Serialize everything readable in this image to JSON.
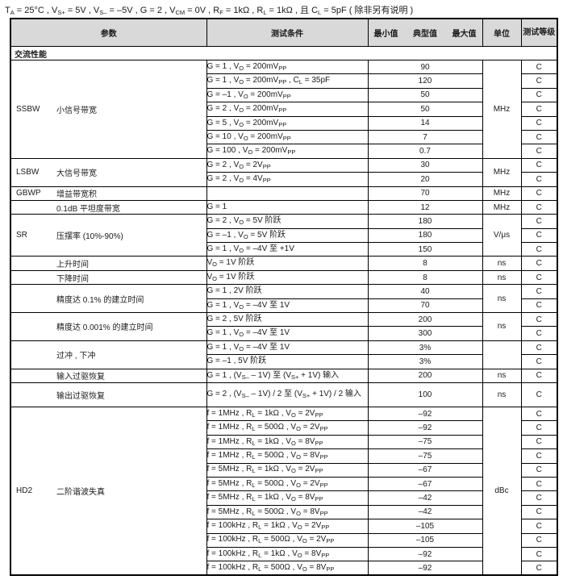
{
  "page": {
    "conditions_line": "T~A~ = 25°C , V~S+~ = 5V , V~S–~ = –5V , G = 2 , V~CM~ = 0V , R~F~ = 1kΩ , R~L~ = 1kΩ , 且 C~L~ = 5pF ( 除非另有说明 )"
  },
  "colors": {
    "header_bg": "#d9d9d9",
    "border": "#000000",
    "text": "#1a1a1a"
  },
  "table": {
    "headers": {
      "param": "参数",
      "conditions": "测试条件",
      "min": "最小值",
      "typ": "典型值",
      "max": "最大值",
      "unit": "单位",
      "level": "测试等级"
    },
    "section": "交流性能",
    "groups": [
      {
        "symbol": "SSBW",
        "name": "小信号带宽",
        "unit": "MHz",
        "rows": [
          {
            "cond": "G = 1 , V~O~ = 200mV~PP~",
            "typ": "90",
            "level": "C"
          },
          {
            "cond": "G = 1 , V~O~ = 200mV~PP~ , C~L~ = 35pF",
            "typ": "120",
            "level": "C"
          },
          {
            "cond": "G = –1 , V~O~ = 200mV~PP~",
            "typ": "50",
            "level": "C"
          },
          {
            "cond": "G = 2 , V~O~ = 200mV~PP~",
            "typ": "50",
            "level": "C"
          },
          {
            "cond": "G = 5 , V~O~ = 200mV~PP~",
            "typ": "14",
            "level": "C"
          },
          {
            "cond": "G = 10 , V~O~ = 200mV~PP~",
            "typ": "7",
            "level": "C"
          },
          {
            "cond": "G = 100 , V~O~ = 200mV~PP~",
            "typ": "0.7",
            "level": "C"
          }
        ]
      },
      {
        "symbol": "LSBW",
        "name": "大信号带宽",
        "unit": "MHz",
        "rows": [
          {
            "cond": "G = 2 , V~O~ = 2V~PP~",
            "typ": "30",
            "level": "C"
          },
          {
            "cond": "G = 2 , V~O~ = 4V~PP~",
            "typ": "20",
            "level": "C"
          }
        ]
      },
      {
        "symbol": "GBWP",
        "name": "增益带宽积",
        "unit": "MHz",
        "rows": [
          {
            "cond": "",
            "typ": "70",
            "level": "C"
          }
        ]
      },
      {
        "symbol": "",
        "name": "0.1dB 平坦度带宽",
        "unit": "MHz",
        "rows": [
          {
            "cond": "G = 1",
            "typ": "12",
            "level": "C"
          }
        ]
      },
      {
        "symbol": "SR",
        "name": "压摆率 (10%-90%)",
        "unit": "V/μs",
        "rows": [
          {
            "cond": "G = 2 , V~O~ = 5V 阶跃",
            "typ": "180",
            "level": "C"
          },
          {
            "cond": "G = –1 , V~O~ = 5V 阶跃",
            "typ": "180",
            "level": "C"
          },
          {
            "cond": "G = 1 , V~O~ = –4V 至 +1V",
            "typ": "150",
            "level": "C"
          }
        ]
      },
      {
        "symbol": "",
        "name": "上升时间",
        "unit": "ns",
        "rows": [
          {
            "cond": "V~O~ = 1V 阶跃",
            "typ": "8",
            "level": "C"
          }
        ]
      },
      {
        "symbol": "",
        "name": "下降时间",
        "unit": "ns",
        "rows": [
          {
            "cond": "V~O~ = 1V 阶跃",
            "typ": "8",
            "level": "C"
          }
        ]
      },
      {
        "symbol": "",
        "name": "精度达 0.1% 的建立时间",
        "unit": "ns",
        "rows": [
          {
            "cond": "G = 1 , 2V 阶跃",
            "typ": "40",
            "level": "C"
          },
          {
            "cond": "G = 1 , V~O~ = –4V 至 1V",
            "typ": "70",
            "level": "C"
          }
        ]
      },
      {
        "symbol": "",
        "name": "精度达 0.001% 的建立时间",
        "unit": "ns",
        "rows": [
          {
            "cond": "G = 2 , 5V 阶跃",
            "typ": "200",
            "level": "C"
          },
          {
            "cond": "G = 1 , V~O~ = –4V 至 1V",
            "typ": "300",
            "level": "C"
          }
        ]
      },
      {
        "symbol": "",
        "name": "过冲 , 下冲",
        "unit": "",
        "rows": [
          {
            "cond": "G = 1 , V~O~ = –4V 至 1V",
            "typ": "3%",
            "level": "C"
          },
          {
            "cond": "G = –1 , 5V 阶跃",
            "typ": "3%",
            "level": "C"
          }
        ]
      },
      {
        "symbol": "",
        "name": "输入过驱恢复",
        "unit": "ns",
        "rows": [
          {
            "cond": "G = 1 , (V~S–~ – 1V) 至 (V~S+~ + 1V) 输入",
            "typ": "200",
            "level": "C"
          }
        ]
      },
      {
        "symbol": "",
        "name": "输出过驱恢复",
        "unit": "ns",
        "tall": true,
        "rows": [
          {
            "cond": "G = 2 , (V~S–~ – 1V) / 2 至 (V~S+~ + 1V) / 2 输入",
            "typ": "100",
            "level": "C"
          }
        ]
      },
      {
        "symbol": "HD2",
        "name": "二阶谐波失真",
        "unit": "dBc",
        "rows": [
          {
            "cond": "f = 1MHz , R~L~ = 1kΩ , V~O~ = 2V~PP~",
            "typ": "–92",
            "level": "C"
          },
          {
            "cond": "f = 1MHz , R~L~ = 500Ω , V~O~ = 2V~PP~",
            "typ": "–92",
            "level": "C"
          },
          {
            "cond": "f = 1MHz , R~L~ = 1kΩ , V~O~ = 8V~PP~",
            "typ": "–75",
            "level": "C"
          },
          {
            "cond": "f = 1MHz , R~L~ = 500Ω , V~O~ = 8V~PP~",
            "typ": "–75",
            "level": "C"
          },
          {
            "cond": "f = 5MHz , R~L~ = 1kΩ , V~O~ = 2V~PP~",
            "typ": "–67",
            "level": "C"
          },
          {
            "cond": "f = 5MHz , R~L~ = 500Ω , V~O~ = 2V~PP~",
            "typ": "–67",
            "level": "C"
          },
          {
            "cond": "f = 5MHz , R~L~ = 1kΩ , V~O~ = 8V~PP~",
            "typ": "–42",
            "level": "C"
          },
          {
            "cond": "f = 5MHz , R~L~ = 500Ω , V~O~ = 8V~PP~",
            "typ": "–42",
            "level": "C"
          },
          {
            "cond": "f = 100kHz , R~L~ = 1kΩ , V~O~ = 2V~PP~",
            "typ": "–105",
            "level": "C"
          },
          {
            "cond": "f = 100kHz , R~L~ = 500Ω , V~O~ = 2V~PP~",
            "typ": "–105",
            "level": "C"
          },
          {
            "cond": "f = 100kHz , R~L~ = 1kΩ , V~O~ = 8V~PP~",
            "typ": "–92",
            "level": "C"
          },
          {
            "cond": "f = 100kHz , R~L~ = 500Ω , V~O~ = 8V~PP~",
            "typ": "–92",
            "level": "C"
          }
        ]
      }
    ]
  }
}
